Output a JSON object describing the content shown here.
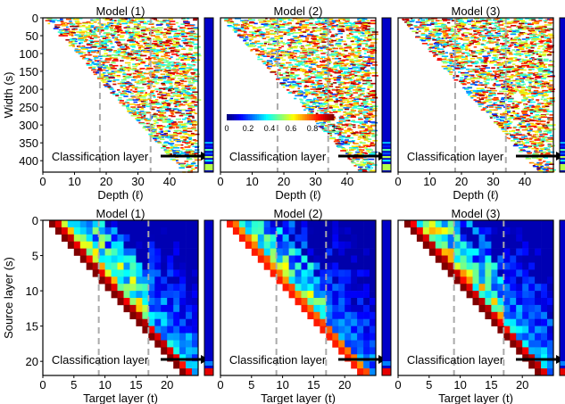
{
  "chart_data": [
    {
      "type": "heatmap",
      "title": "Model (1)",
      "xlabel": "Depth (ℓ)",
      "ylabel": "Width (s)",
      "xticks": [
        0,
        10,
        20,
        30,
        40
      ],
      "yticks": [
        0,
        50,
        100,
        150,
        200,
        250,
        300,
        350,
        400
      ],
      "xlim": [
        0,
        49
      ],
      "ylim": [
        432,
        0
      ],
      "annotation": "Classification layer",
      "dashed_lines_x": [
        18,
        34
      ],
      "pattern": "sparse staircase of single-row cell activations"
    },
    {
      "type": "heatmap",
      "title": "Model (2)",
      "xlabel": "Depth (ℓ)",
      "ylabel": "",
      "xticks": [
        0,
        10,
        20,
        30,
        40
      ],
      "xlim": [
        0,
        49
      ],
      "ylim": [
        432,
        0
      ],
      "annotation": "Classification layer",
      "dashed_lines_x": [
        18,
        34
      ],
      "colorbar": {
        "ticks": [
          "0",
          "0.2",
          "0.4",
          "0.6",
          "0.8",
          "1"
        ],
        "range": [
          0,
          1
        ],
        "colormap": "jet"
      }
    },
    {
      "type": "heatmap",
      "title": "Model (3)",
      "xlabel": "Depth (ℓ)",
      "ylabel": "",
      "xticks": [
        0,
        10,
        20,
        30,
        40
      ],
      "xlim": [
        0,
        49
      ],
      "ylim": [
        432,
        0
      ],
      "annotation": "Classification layer",
      "dashed_lines_x": [
        18,
        34
      ]
    },
    {
      "type": "heatmap",
      "title": "Model (1)",
      "xlabel": "Target layer (t)",
      "ylabel": "Source layer (s)",
      "xticks": [
        0,
        5,
        10,
        15,
        20
      ],
      "yticks": [
        0,
        5,
        10,
        15,
        20
      ],
      "xlim": [
        0,
        25
      ],
      "ylim": [
        22,
        0
      ],
      "annotation": "Classification layer",
      "dashed_lines_x": [
        9,
        17
      ],
      "pattern": "lower-left triangle, dark red diagonal fading to blue towards the right"
    },
    {
      "type": "heatmap",
      "title": "Model (2)",
      "xlabel": "Target layer (t)",
      "ylabel": "",
      "xticks": [
        0,
        5,
        10,
        15,
        20
      ],
      "xlim": [
        0,
        25
      ],
      "ylim": [
        22,
        0
      ],
      "annotation": "Classification layer",
      "dashed_lines_x": [
        9,
        17
      ]
    },
    {
      "type": "heatmap",
      "title": "Model (3)",
      "xlabel": "Target layer (t)",
      "ylabel": "",
      "xticks": [
        0,
        5,
        10,
        15,
        20
      ],
      "xlim": [
        0,
        25
      ],
      "ylim": [
        22,
        0
      ],
      "annotation": "Classification layer",
      "dashed_lines_x": [
        9,
        17
      ]
    }
  ]
}
